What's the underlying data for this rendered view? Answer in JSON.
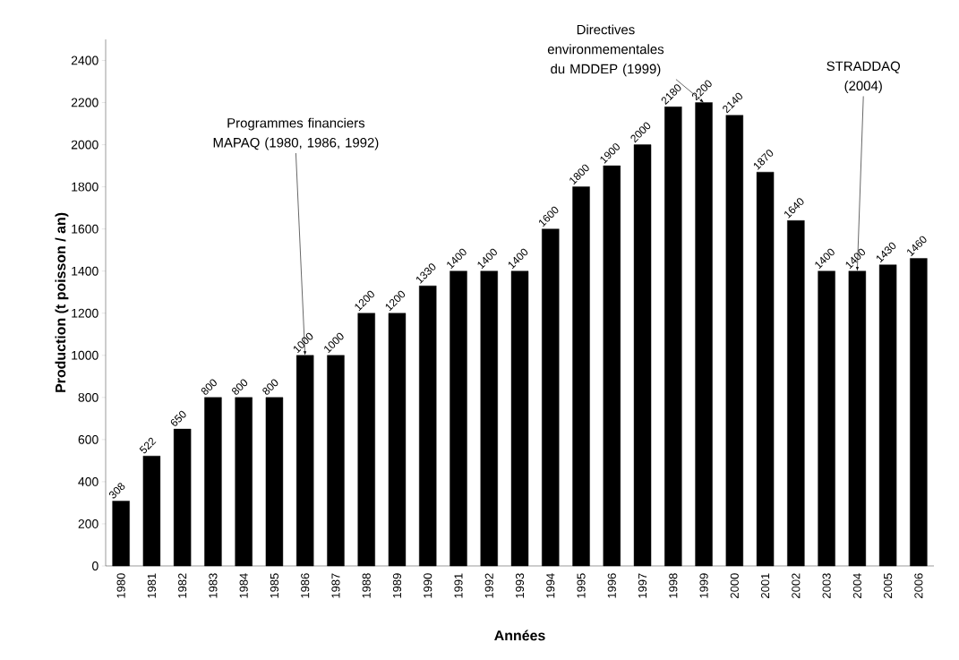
{
  "chart_data": {
    "type": "bar",
    "xlabel": "Années",
    "ylabel": "Production (t poisson / an)",
    "categories": [
      "1980",
      "1981",
      "1982",
      "1983",
      "1984",
      "1985",
      "1986",
      "1987",
      "1988",
      "1989",
      "1990",
      "1991",
      "1992",
      "1993",
      "1994",
      "1995",
      "1996",
      "1997",
      "1998",
      "1999",
      "2000",
      "2001",
      "2002",
      "2003",
      "2004",
      "2005",
      "2006"
    ],
    "values": [
      308,
      522,
      650,
      800,
      800,
      800,
      1000,
      1000,
      1200,
      1200,
      1330,
      1400,
      1400,
      1400,
      1600,
      1800,
      1900,
      2000,
      2180,
      2200,
      2140,
      1870,
      1640,
      1400,
      1400,
      1430,
      1460
    ],
    "color": "#000000",
    "data_labels": true,
    "grid": false,
    "ylim": [
      0,
      2500
    ],
    "yticks": [
      0,
      200,
      400,
      600,
      800,
      1000,
      1200,
      1400,
      1600,
      1800,
      2000,
      2200,
      2400
    ],
    "annotations": [
      {
        "text": "Programmes financiers MAPAQ (1980, 1986, 1992)",
        "x": "1986",
        "y": 1000
      },
      {
        "text": "Directives environmementales du MDDEP (1999)",
        "x": "1999",
        "y": 2200
      },
      {
        "text": "STRADDAQ (2004)",
        "x": "2004",
        "y": 1400
      }
    ]
  }
}
